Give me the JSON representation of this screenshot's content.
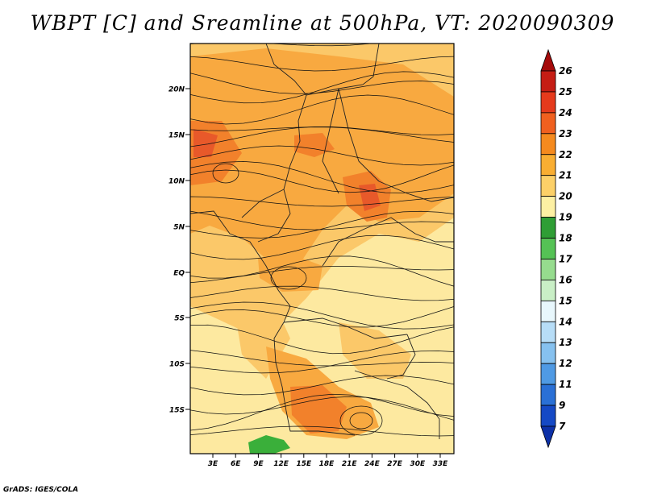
{
  "title": "WBPT [C] and Sreamline at 500hPa, VT: 2020090309",
  "credit": "GrADS: IGES/COLA",
  "map": {
    "lat_labels": [
      "20N",
      "15N",
      "10N",
      "5N",
      "EQ",
      "5S",
      "10S",
      "15S"
    ],
    "lon_labels": [
      "3E",
      "6E",
      "9E",
      "12E",
      "15E",
      "18E",
      "21E",
      "24E",
      "27E",
      "30E",
      "33E"
    ],
    "fill_colors": {
      "pale_yellow": "#fde9a0",
      "light_orange": "#fbc869",
      "orange": "#f8a940",
      "dark_orange": "#f2812b",
      "red_orange": "#e8592a",
      "green": "#3aaf3a"
    }
  },
  "colorbar": {
    "labels": [
      "26",
      "25",
      "24",
      "23",
      "22",
      "21",
      "20",
      "19",
      "18",
      "17",
      "16",
      "15",
      "14",
      "13",
      "12",
      "11",
      "9",
      "7"
    ],
    "colors": [
      "#a50a0a",
      "#c51d14",
      "#e53a1c",
      "#f0601f",
      "#f58a1e",
      "#f9ae32",
      "#fcd068",
      "#fdf0a3",
      "#2f9e35",
      "#55c255",
      "#96dc8e",
      "#c9efc6",
      "#e8f7fc",
      "#b7ddf7",
      "#86c1ef",
      "#4f9ae4",
      "#2a70d6",
      "#1549c5",
      "#0d31a8"
    ]
  }
}
